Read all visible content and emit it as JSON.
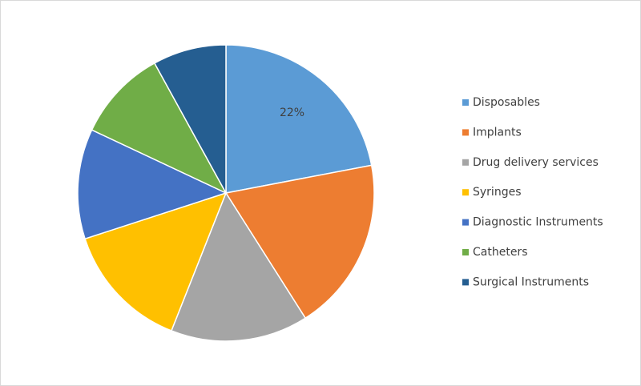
{
  "chart_data": {
    "type": "pie",
    "categories": [
      "Disposables",
      "Implants",
      "Drug delivery services",
      "Syringes",
      "Diagnostic Instruments",
      "Catheters",
      "Surgical Instruments"
    ],
    "values": [
      22,
      19,
      15,
      14,
      12,
      10,
      8
    ],
    "value_labels": [
      "22%",
      null,
      null,
      null,
      null,
      null,
      null
    ],
    "colors": [
      "#5b9bd5",
      "#ed7d31",
      "#a5a5a5",
      "#ffc000",
      "#4472c4",
      "#70ad47",
      "#255e91"
    ],
    "legend": "right"
  }
}
